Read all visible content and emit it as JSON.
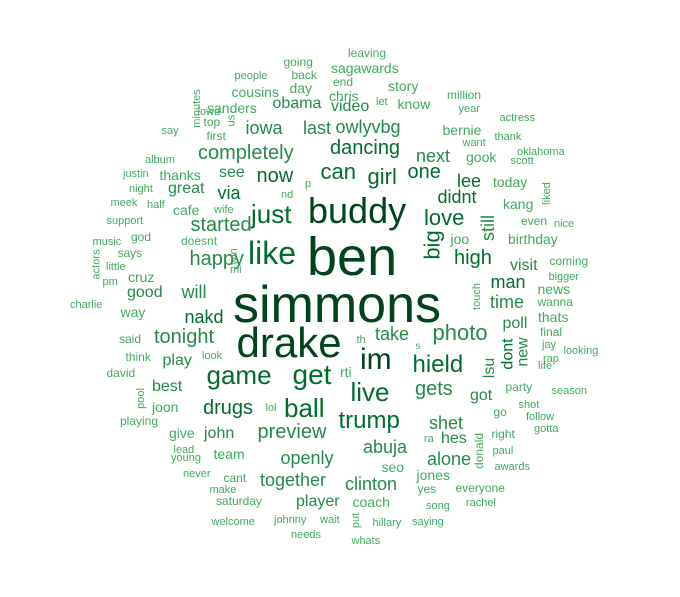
{
  "words": [
    "simmons",
    "ben",
    "drake",
    "buddy",
    "like",
    "im",
    "get",
    "just",
    "game",
    "ball",
    "live",
    "hield",
    "trump",
    "photo",
    "love",
    "can",
    "girl",
    "big",
    "happy",
    "started",
    "dancing",
    "completely",
    "gets",
    "high",
    "now",
    "one",
    "tonight",
    "preview",
    "drugs",
    "openly",
    "take",
    "abuja",
    "via",
    "nakd",
    "shet",
    "didnt",
    "man",
    "lee",
    "iowa",
    "still",
    "together",
    "clinton",
    "owlyvbg",
    "will",
    "last",
    "alone",
    "next",
    "time",
    "got",
    "see",
    "lsu",
    "great",
    "player",
    "play",
    "news",
    "visit",
    "john",
    "poll",
    "dont",
    "new",
    "rti",
    "hes",
    "best",
    "obama",
    "birthday",
    "video",
    "know",
    "good",
    "kang",
    "cafe",
    "team",
    "today",
    "joon",
    "seo",
    "jones",
    "coach",
    "chris",
    "gook",
    "bernie",
    "sanders",
    "story",
    "cousins",
    "day",
    "sagawards",
    "thanks",
    "way",
    "cruz",
    "thats",
    "give",
    "joo",
    "doesnt",
    "wanna",
    "says",
    "touch",
    "party",
    "right",
    "donald",
    "go",
    "final",
    "coming",
    "yes",
    "everyone",
    "leaving",
    "going",
    "back",
    "end",
    "people",
    "top",
    "first",
    "iowa",
    "say",
    "million",
    "year",
    "actress",
    "want",
    "thank",
    "scott",
    "oklahoma",
    "album",
    "justin",
    "night",
    "meek",
    "half",
    "wife",
    "liked",
    "even",
    "nice",
    "support",
    "god",
    "music",
    "little",
    "pm",
    "charlie",
    "actors",
    "win",
    "mi",
    "jay",
    "rap",
    "bigger",
    "said",
    "think",
    "david",
    "pool",
    "playing",
    "looking",
    "life",
    "season",
    "shot",
    "follow",
    "gotta",
    "lead",
    "young",
    "never",
    "make",
    "cant",
    "saturday",
    "welcome",
    "johnny",
    "needs",
    "wait",
    "put",
    "hillary",
    "saying",
    "whats",
    "song",
    "rachel",
    "awards",
    "paul",
    "ra",
    "lol",
    "look",
    "th",
    "nd",
    "p",
    "s",
    "minutes",
    "us",
    "let"
  ],
  "colors": {
    "darkest": "#00441b",
    "dark": "#006d2c",
    "mid": "#238b45",
    "light": "#41ab5d",
    "lightest": "#74c476"
  }
}
